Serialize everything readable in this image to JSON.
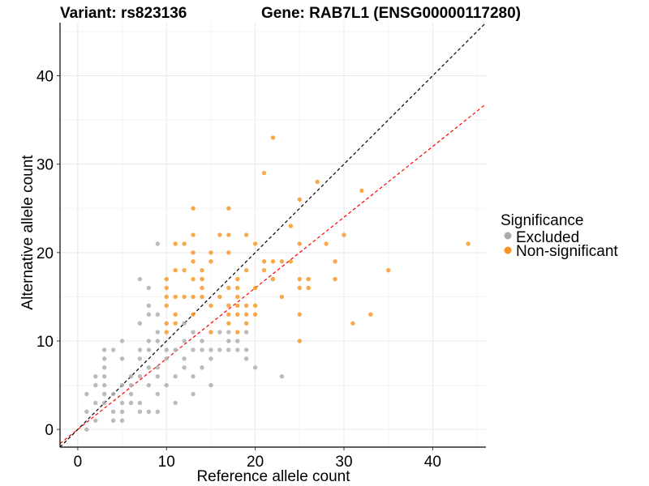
{
  "chart_data": {
    "type": "scatter",
    "title_left": "Variant: rs823136",
    "title_right": "Gene: RAB7L1 (ENSG00000117280)",
    "xlabel": "Reference allele count",
    "ylabel": "Alternative allele count",
    "xlim": [
      -2,
      46
    ],
    "ylim": [
      -2,
      46
    ],
    "x_ticks": [
      "0",
      "10",
      "20",
      "30",
      "40"
    ],
    "y_ticks": [
      "0",
      "10",
      "20",
      "30",
      "40"
    ],
    "grid": true,
    "legend": {
      "title": "Significance",
      "position": "right",
      "entries": [
        {
          "label": "Excluded",
          "color": "#aaaaaa"
        },
        {
          "label": "Non-significant",
          "color": "#f7941d"
        }
      ]
    },
    "reference_lines": [
      {
        "name": "identity",
        "slope": 1,
        "intercept": 0,
        "color": "#000000"
      },
      {
        "name": "expected",
        "slope": 0.8,
        "intercept": 0,
        "color": "#ff0000"
      }
    ],
    "series": [
      {
        "name": "Excluded",
        "color": "#aaaaaa",
        "points": [
          [
            1,
            0
          ],
          [
            1,
            2
          ],
          [
            1,
            4
          ],
          [
            2,
            3
          ],
          [
            2,
            5
          ],
          [
            2,
            6
          ],
          [
            2,
            1
          ],
          [
            3,
            3
          ],
          [
            3,
            4
          ],
          [
            3,
            5
          ],
          [
            3,
            6
          ],
          [
            3,
            7
          ],
          [
            3,
            8
          ],
          [
            3,
            9
          ],
          [
            4,
            2
          ],
          [
            4,
            4
          ],
          [
            4,
            9
          ],
          [
            4,
            1
          ],
          [
            5,
            1
          ],
          [
            5,
            2
          ],
          [
            5,
            3
          ],
          [
            5,
            5
          ],
          [
            5,
            8
          ],
          [
            5,
            10
          ],
          [
            6,
            3
          ],
          [
            6,
            5
          ],
          [
            6,
            6
          ],
          [
            6,
            4
          ],
          [
            7,
            2
          ],
          [
            7,
            3
          ],
          [
            7,
            6
          ],
          [
            7,
            8
          ],
          [
            7,
            9
          ],
          [
            7,
            12
          ],
          [
            7,
            17
          ],
          [
            8,
            5
          ],
          [
            8,
            7
          ],
          [
            8,
            9
          ],
          [
            8,
            10
          ],
          [
            8,
            13
          ],
          [
            8,
            14
          ],
          [
            8,
            16
          ],
          [
            8,
            2
          ],
          [
            9,
            2
          ],
          [
            9,
            4
          ],
          [
            9,
            6
          ],
          [
            9,
            7
          ],
          [
            9,
            10
          ],
          [
            9,
            11
          ],
          [
            9,
            13
          ],
          [
            9,
            21
          ],
          [
            10,
            5
          ],
          [
            10,
            8
          ],
          [
            10,
            9
          ],
          [
            11,
            3
          ],
          [
            11,
            6
          ],
          [
            11,
            9
          ],
          [
            12,
            7
          ],
          [
            12,
            8
          ],
          [
            12,
            10
          ],
          [
            12,
            12
          ],
          [
            13,
            4
          ],
          [
            13,
            6
          ],
          [
            13,
            9
          ],
          [
            13,
            11
          ],
          [
            14,
            7
          ],
          [
            14,
            9
          ],
          [
            14,
            10
          ],
          [
            15,
            5
          ],
          [
            15,
            8
          ],
          [
            15,
            9
          ],
          [
            16,
            9
          ],
          [
            16,
            11
          ],
          [
            17,
            9
          ],
          [
            17,
            10
          ],
          [
            17,
            11
          ],
          [
            18,
            9
          ],
          [
            18,
            10
          ],
          [
            19,
            8
          ],
          [
            19,
            9
          ],
          [
            19,
            11
          ],
          [
            20,
            7
          ],
          [
            23,
            6
          ]
        ]
      },
      {
        "name": "Non-significant",
        "color": "#f7941d",
        "points": [
          [
            10,
            12
          ],
          [
            10,
            14
          ],
          [
            10,
            15
          ],
          [
            10,
            16
          ],
          [
            10,
            17
          ],
          [
            10,
            11
          ],
          [
            11,
            12
          ],
          [
            11,
            13
          ],
          [
            11,
            15
          ],
          [
            11,
            18
          ],
          [
            11,
            21
          ],
          [
            12,
            15
          ],
          [
            12,
            18
          ],
          [
            12,
            21
          ],
          [
            13,
            13
          ],
          [
            13,
            15
          ],
          [
            13,
            17
          ],
          [
            13,
            19
          ],
          [
            13,
            20
          ],
          [
            13,
            22
          ],
          [
            13,
            25
          ],
          [
            14,
            15
          ],
          [
            14,
            16
          ],
          [
            14,
            17
          ],
          [
            14,
            18
          ],
          [
            15,
            14
          ],
          [
            15,
            19
          ],
          [
            15,
            20
          ],
          [
            15,
            11
          ],
          [
            16,
            15
          ],
          [
            16,
            22
          ],
          [
            17,
            12
          ],
          [
            17,
            13
          ],
          [
            17,
            14
          ],
          [
            17,
            16
          ],
          [
            17,
            20
          ],
          [
            17,
            22
          ],
          [
            17,
            25
          ],
          [
            18,
            11
          ],
          [
            18,
            13
          ],
          [
            18,
            14
          ],
          [
            18,
            15
          ],
          [
            18,
            16
          ],
          [
            18,
            17
          ],
          [
            19,
            12
          ],
          [
            19,
            13
          ],
          [
            19,
            14
          ],
          [
            19,
            18
          ],
          [
            19,
            22
          ],
          [
            20,
            13
          ],
          [
            20,
            14
          ],
          [
            20,
            16
          ],
          [
            20,
            21
          ],
          [
            21,
            18
          ],
          [
            21,
            19
          ],
          [
            21,
            29
          ],
          [
            22,
            17
          ],
          [
            22,
            19
          ],
          [
            22,
            33
          ],
          [
            23,
            15
          ],
          [
            23,
            19
          ],
          [
            24,
            23
          ],
          [
            24,
            19
          ],
          [
            25,
            10
          ],
          [
            25,
            13
          ],
          [
            25,
            16
          ],
          [
            25,
            17
          ],
          [
            25,
            21
          ],
          [
            25,
            26
          ],
          [
            26,
            16
          ],
          [
            26,
            17
          ],
          [
            27,
            28
          ],
          [
            28,
            21
          ],
          [
            29,
            17
          ],
          [
            29,
            19
          ],
          [
            30,
            22
          ],
          [
            31,
            12
          ],
          [
            32,
            27
          ],
          [
            33,
            13
          ],
          [
            35,
            18
          ],
          [
            44,
            21
          ]
        ]
      }
    ]
  }
}
